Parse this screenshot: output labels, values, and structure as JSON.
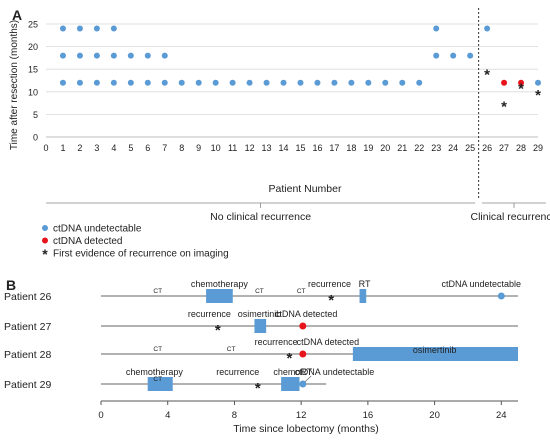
{
  "chart_data": [
    {
      "type": "scatter",
      "panel_label": "A",
      "ylabel": "Time after resection (months)",
      "xlabel": "Patient Number",
      "xlim": [
        0,
        29
      ],
      "ylim": [
        0,
        25
      ],
      "x_ticks": [
        0,
        1,
        2,
        3,
        4,
        5,
        6,
        7,
        8,
        9,
        10,
        11,
        12,
        13,
        14,
        15,
        16,
        17,
        18,
        19,
        20,
        21,
        22,
        23,
        24,
        25,
        26,
        27,
        28,
        29
      ],
      "y_ticks": [
        0,
        5,
        10,
        15,
        20,
        25
      ],
      "grid": "horizontal",
      "colors": {
        "undetectable": "#5b9bd5",
        "detected": "#e8141b",
        "recurrence": "#111111",
        "grid": "#d9d9d9"
      },
      "series": [
        {
          "name": "ctDNA undetectable",
          "points": [
            [
              1,
              12
            ],
            [
              1,
              18
            ],
            [
              1,
              24
            ],
            [
              2,
              12
            ],
            [
              2,
              18
            ],
            [
              2,
              24
            ],
            [
              3,
              12
            ],
            [
              3,
              18
            ],
            [
              3,
              24
            ],
            [
              4,
              12
            ],
            [
              4,
              18
            ],
            [
              4,
              24
            ],
            [
              5,
              12
            ],
            [
              5,
              18
            ],
            [
              6,
              12
            ],
            [
              6,
              18
            ],
            [
              7,
              12
            ],
            [
              7,
              18
            ],
            [
              8,
              12
            ],
            [
              9,
              12
            ],
            [
              10,
              12
            ],
            [
              11,
              12
            ],
            [
              12,
              12
            ],
            [
              13,
              12
            ],
            [
              14,
              12
            ],
            [
              15,
              12
            ],
            [
              16,
              12
            ],
            [
              17,
              12
            ],
            [
              18,
              12
            ],
            [
              19,
              12
            ],
            [
              20,
              12
            ],
            [
              21,
              12
            ],
            [
              22,
              12
            ],
            [
              23,
              18
            ],
            [
              23,
              24
            ],
            [
              24,
              18
            ],
            [
              25,
              18
            ],
            [
              26,
              24
            ],
            [
              29,
              12
            ]
          ]
        },
        {
          "name": "ctDNA detected",
          "points": [
            [
              27,
              12
            ],
            [
              28,
              12
            ]
          ]
        },
        {
          "name": "First evidence of recurrence on imaging",
          "points": [
            [
              26,
              14
            ],
            [
              27,
              7
            ],
            [
              28,
              11
            ],
            [
              29,
              9.5
            ]
          ]
        }
      ],
      "divider_x": 25.5,
      "groups": [
        {
          "label": "No clinical recurrence",
          "from": 0,
          "to": 25.3
        },
        {
          "label": "Clinical recurrence",
          "from": 25.7,
          "to": 29.8
        }
      ],
      "legend": {
        "placement": "bottom-left",
        "items": [
          {
            "label": "ctDNA undetectable",
            "marker": "blue-dot"
          },
          {
            "label": "ctDNA detected",
            "marker": "red-dot"
          },
          {
            "label": "First evidence of recurrence on imaging",
            "marker": "asterisk"
          }
        ]
      }
    },
    {
      "type": "timeline",
      "panel_label": "B",
      "xlabel": "Time since lobectomy (months)",
      "xlim": [
        0,
        25
      ],
      "x_ticks": [
        0,
        4,
        8,
        12,
        16,
        20,
        24
      ],
      "rows": [
        {
          "label": "Patient 26",
          "line_end": 25,
          "bars": [
            {
              "name": "chemotherapy",
              "from": 6.3,
              "to": 7.9
            },
            {
              "name": "RT",
              "from": 15.5,
              "to": 15.9
            }
          ],
          "labels": [
            {
              "text": "CT",
              "x": 3.4,
              "small": true
            },
            {
              "text": "chemotherapy",
              "x": 7.1
            },
            {
              "text": "CT",
              "x": 9.5,
              "small": true
            },
            {
              "text": "CT",
              "x": 12.0,
              "small": true
            },
            {
              "text": "recurrence",
              "x": 13.7
            },
            {
              "text": "RT",
              "x": 15.8
            },
            {
              "text": "ctDNA undetectable",
              "x": 22.8
            }
          ],
          "dots": [
            {
              "x": 24,
              "status": "undetectable"
            }
          ],
          "asterisks": [
            13.8
          ]
        },
        {
          "label": "Patient 27",
          "line_end": 25,
          "bars": [
            {
              "name": "osimertinib",
              "from": 9.2,
              "to": 9.9
            }
          ],
          "labels": [
            {
              "text": "recurrence",
              "x": 6.5
            },
            {
              "text": "osimertinib",
              "x": 9.5
            },
            {
              "text": "ctDNA detected",
              "x": 12.3
            }
          ],
          "dots": [
            {
              "x": 12.1,
              "status": "detected"
            }
          ],
          "asterisks": [
            7.0
          ]
        },
        {
          "label": "Patient 28",
          "line_end": 25,
          "bars": [
            {
              "name": "osimertinib",
              "from": 15.1,
              "to": 25
            }
          ],
          "labels": [
            {
              "text": "CT",
              "x": 3.4,
              "small": true
            },
            {
              "text": "CT",
              "x": 7.8,
              "small": true
            },
            {
              "text": "recurrence",
              "x": 10.5
            },
            {
              "text": "ctDNA detected",
              "x": 13.6
            },
            {
              "text": "osimertinib",
              "x": 20.0
            }
          ],
          "dots": [
            {
              "x": 12.1,
              "status": "detected"
            }
          ],
          "asterisks": [
            11.3
          ]
        },
        {
          "label": "Patient 29",
          "line_end": 13.5,
          "bars": [
            {
              "name": "CT",
              "from": 2.8,
              "to": 4.3
            },
            {
              "name": "chemoRT",
              "from": 10.8,
              "to": 11.9
            }
          ],
          "labels": [
            {
              "text": "chemotherapy",
              "x": 3.2
            },
            {
              "text": "CT",
              "x": 3.4,
              "small": true
            },
            {
              "text": "recurrence",
              "x": 8.2
            },
            {
              "text": "chemoRT",
              "x": 11.5
            },
            {
              "text": "ctDNA undetectable",
              "x": 14.0
            }
          ],
          "dots": [
            {
              "x": 12.1,
              "status": "undetectable"
            }
          ],
          "asterisks": [
            9.4
          ]
        }
      ]
    }
  ]
}
